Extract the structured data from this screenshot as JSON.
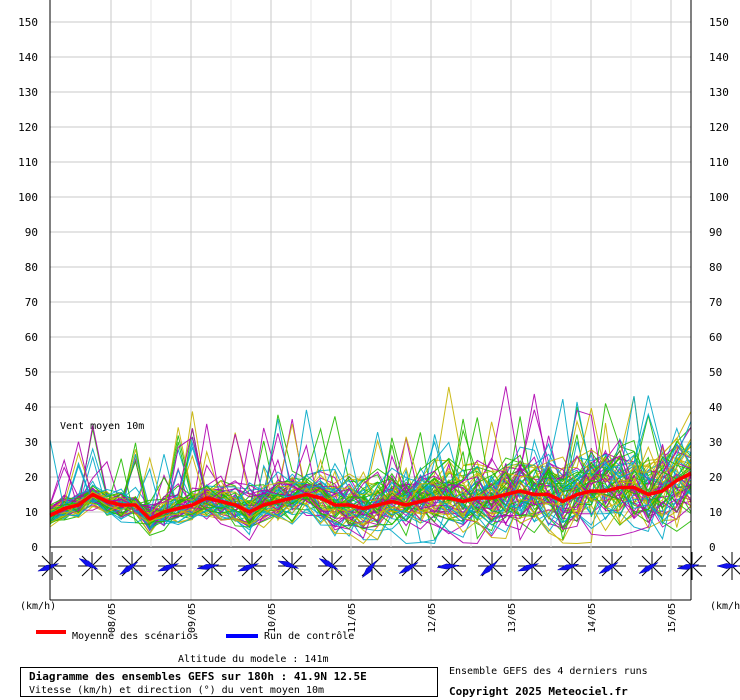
{
  "chart_data": {
    "type": "line",
    "title": "Diagramme des ensembles GEFS sur 180h : 41.9N 12.5E",
    "subtitle": "Vitesse (km/h) et direction (°) du vent moyen 10m",
    "series_label": "Vent moyen 10m",
    "yunit_left": "(km/h)",
    "yunit_right": "(km/h)",
    "ylim": [
      0,
      150
    ],
    "yticks": [
      0,
      10,
      20,
      30,
      40,
      50,
      60,
      70,
      80,
      90,
      100,
      110,
      120,
      130,
      140,
      150
    ],
    "x_dates": [
      "08/05",
      "09/05",
      "10/05",
      "11/05",
      "12/05",
      "13/05",
      "14/05",
      "15/05"
    ],
    "grid": true,
    "legend": {
      "mean_label": "Moyenne des scénarios",
      "control_label": "Run de contrôle"
    },
    "colors": {
      "mean": "#ff0000",
      "control": "#0000ff",
      "ensemble": [
        "#c8b400",
        "#22bb00",
        "#b000b0",
        "#00a8c8"
      ]
    },
    "mean_series": [
      9,
      11,
      12,
      15,
      13,
      12,
      12,
      8,
      10,
      11,
      12,
      14,
      13,
      12,
      10,
      12,
      13,
      14,
      15,
      14,
      12,
      12,
      11,
      12,
      13,
      12,
      13,
      14,
      14,
      13,
      14,
      14,
      15,
      16,
      15,
      15,
      13,
      15,
      16,
      16,
      17,
      17,
      15,
      16,
      19,
      21
    ],
    "wind_rose_directions": [
      250,
      300,
      235,
      250,
      260,
      250,
      290,
      300,
      220,
      240,
      265,
      230,
      250,
      255,
      240,
      240,
      260,
      270
    ],
    "altitude": "Altitude du modele : 141m",
    "ensemble_note": "Ensemble GEFS des 4 derniers runs",
    "copyright": "Copyright 2025 Meteociel.fr"
  }
}
